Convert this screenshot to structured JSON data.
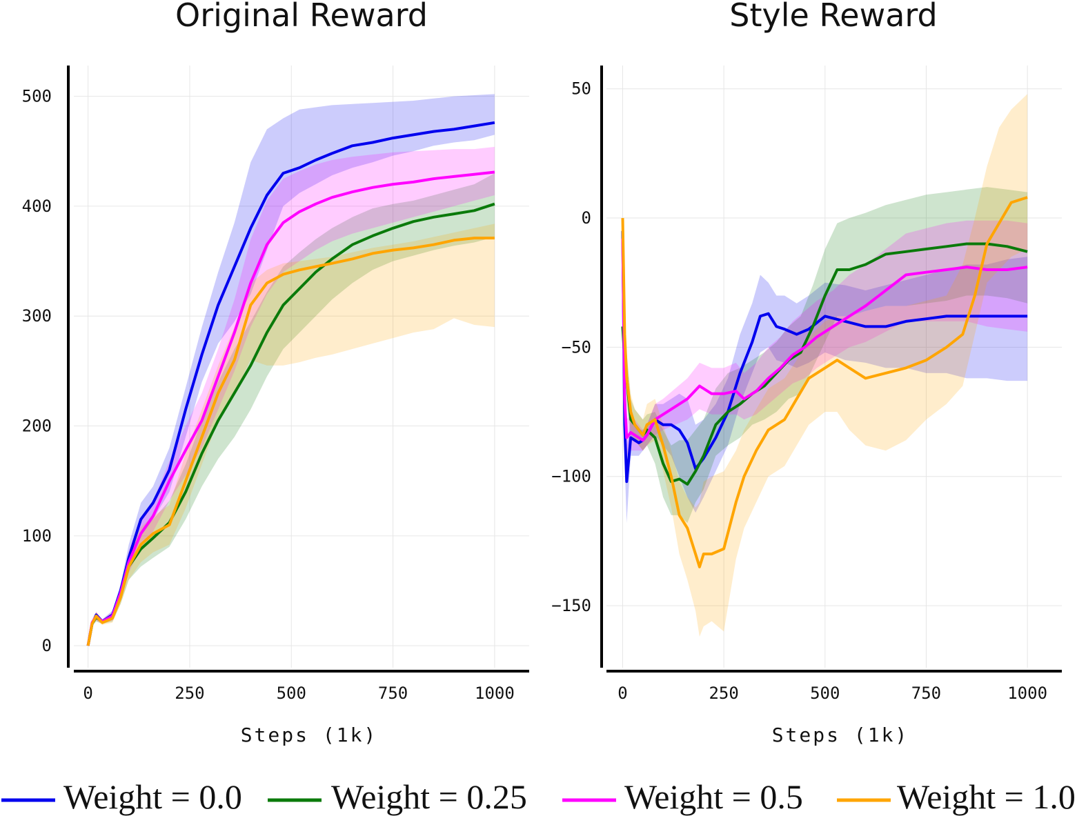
{
  "legend": [
    {
      "label": "Weight = 0.0",
      "color": "#0000ee"
    },
    {
      "label": "Weight = 0.25",
      "color": "#0a7a0a"
    },
    {
      "label": "Weight = 0.5",
      "color": "#ff00ff"
    },
    {
      "label": "Weight = 1.0",
      "color": "#ffa500"
    }
  ],
  "chart_data": [
    {
      "type": "line",
      "title": "Original Reward",
      "xlabel": "Steps (1k)",
      "ylabel": "",
      "xlim": [
        -35,
        1085
      ],
      "ylim": [
        -20,
        528
      ],
      "xticks": [
        0,
        250,
        500,
        750,
        1000
      ],
      "yticks": [
        0,
        100,
        200,
        300,
        400,
        500
      ],
      "grid": true,
      "series": [
        {
          "color": "#0000ee",
          "x": [
            0,
            10,
            20,
            35,
            60,
            80,
            100,
            130,
            160,
            200,
            240,
            280,
            320,
            360,
            400,
            440,
            480,
            520,
            560,
            600,
            650,
            700,
            750,
            800,
            850,
            900,
            950,
            1000
          ],
          "y": [
            0,
            20,
            28,
            22,
            28,
            50,
            80,
            115,
            130,
            160,
            215,
            265,
            310,
            345,
            380,
            410,
            430,
            435,
            442,
            448,
            455,
            458,
            462,
            465,
            468,
            470,
            473,
            476
          ],
          "lower": [
            0,
            18,
            24,
            20,
            24,
            44,
            70,
            100,
            115,
            140,
            190,
            240,
            275,
            295,
            320,
            360,
            400,
            412,
            420,
            428,
            435,
            440,
            446,
            450,
            455,
            458,
            460,
            465
          ],
          "upper": [
            0,
            22,
            30,
            24,
            32,
            56,
            92,
            130,
            145,
            180,
            235,
            290,
            340,
            385,
            440,
            470,
            480,
            488,
            490,
            492,
            493,
            494,
            495,
            496,
            498,
            500,
            501,
            502
          ]
        },
        {
          "color": "#0a7a0a",
          "x": [
            0,
            10,
            20,
            35,
            60,
            80,
            100,
            130,
            160,
            200,
            240,
            280,
            320,
            360,
            400,
            440,
            480,
            520,
            560,
            600,
            650,
            700,
            750,
            800,
            850,
            900,
            950,
            1000
          ],
          "y": [
            0,
            20,
            26,
            22,
            26,
            45,
            72,
            88,
            98,
            112,
            140,
            175,
            205,
            230,
            255,
            285,
            310,
            325,
            340,
            352,
            365,
            373,
            380,
            386,
            390,
            393,
            396,
            402
          ],
          "lower": [
            0,
            18,
            22,
            20,
            22,
            38,
            60,
            72,
            80,
            90,
            115,
            145,
            170,
            190,
            215,
            245,
            270,
            285,
            300,
            315,
            330,
            342,
            350,
            355,
            360,
            364,
            367,
            372
          ],
          "upper": [
            0,
            22,
            30,
            24,
            30,
            52,
            85,
            102,
            115,
            132,
            165,
            205,
            240,
            270,
            295,
            322,
            345,
            358,
            370,
            380,
            390,
            398,
            402,
            405,
            410,
            415,
            420,
            430
          ]
        },
        {
          "color": "#ff00ff",
          "x": [
            0,
            10,
            20,
            35,
            60,
            80,
            100,
            130,
            160,
            200,
            240,
            280,
            320,
            360,
            400,
            440,
            480,
            520,
            560,
            600,
            650,
            700,
            750,
            800,
            850,
            900,
            950,
            1000
          ],
          "y": [
            0,
            21,
            27,
            22,
            27,
            48,
            76,
            102,
            118,
            150,
            178,
            205,
            245,
            285,
            330,
            365,
            385,
            395,
            402,
            408,
            413,
            417,
            420,
            422,
            425,
            427,
            429,
            431
          ],
          "lower": [
            0,
            19,
            23,
            20,
            23,
            42,
            66,
            90,
            104,
            132,
            155,
            180,
            215,
            250,
            290,
            320,
            340,
            350,
            360,
            368,
            375,
            380,
            385,
            390,
            395,
            400,
            405,
            410
          ],
          "upper": [
            0,
            23,
            31,
            24,
            31,
            54,
            86,
            115,
            132,
            168,
            200,
            230,
            270,
            315,
            370,
            405,
            425,
            432,
            438,
            442,
            445,
            447,
            449,
            450,
            451,
            452,
            452,
            454
          ]
        },
        {
          "color": "#ffa500",
          "x": [
            0,
            10,
            20,
            35,
            60,
            80,
            100,
            130,
            160,
            200,
            240,
            280,
            320,
            360,
            400,
            440,
            480,
            520,
            560,
            600,
            650,
            700,
            750,
            800,
            850,
            900,
            950,
            1000
          ],
          "y": [
            0,
            20,
            27,
            21,
            25,
            44,
            72,
            92,
            102,
            110,
            150,
            190,
            230,
            260,
            310,
            330,
            338,
            342,
            345,
            348,
            352,
            357,
            360,
            362,
            365,
            369,
            371,
            371
          ],
          "lower": [
            0,
            18,
            23,
            19,
            21,
            38,
            60,
            76,
            85,
            92,
            125,
            165,
            205,
            230,
            260,
            255,
            255,
            258,
            262,
            265,
            270,
            275,
            280,
            285,
            288,
            298,
            292,
            290
          ],
          "upper": [
            0,
            22,
            31,
            23,
            29,
            50,
            84,
            108,
            118,
            128,
            175,
            215,
            255,
            290,
            330,
            342,
            348,
            350,
            352,
            354,
            358,
            362,
            365,
            368,
            372,
            376,
            380,
            384
          ]
        }
      ]
    },
    {
      "type": "line",
      "title": "Style Reward",
      "xlabel": "Steps (1k)",
      "ylabel": "",
      "xlim": [
        -40,
        1085
      ],
      "ylim": [
        -174,
        59
      ],
      "xticks": [
        0,
        250,
        500,
        750,
        1000
      ],
      "yticks": [
        50,
        0,
        -50,
        -100,
        -150
      ],
      "grid": true,
      "series": [
        {
          "color": "#0000ee",
          "x": [
            0,
            5,
            10,
            20,
            30,
            40,
            50,
            60,
            80,
            100,
            120,
            140,
            160,
            180,
            200,
            230,
            260,
            290,
            320,
            340,
            360,
            380,
            400,
            430,
            460,
            500,
            550,
            600,
            650,
            700,
            750,
            800,
            850,
            900,
            950,
            1000
          ],
          "y": [
            -5,
            -80,
            -102,
            -85,
            -86,
            -87,
            -86,
            -84,
            -78,
            -80,
            -80,
            -82,
            -87,
            -97,
            -93,
            -85,
            -75,
            -60,
            -48,
            -38,
            -37,
            -42,
            -43,
            -45,
            -43,
            -38,
            -40,
            -42,
            -42,
            -40,
            -39,
            -38,
            -38,
            -38,
            -38,
            -38
          ],
          "lower": [
            -10,
            -95,
            -118,
            -92,
            -92,
            -92,
            -90,
            -88,
            -84,
            -88,
            -92,
            -100,
            -108,
            -114,
            -108,
            -98,
            -88,
            -72,
            -60,
            -52,
            -50,
            -55,
            -56,
            -58,
            -56,
            -52,
            -55,
            -56,
            -58,
            -58,
            -60,
            -60,
            -62,
            -62,
            -63,
            -63
          ],
          "upper": [
            0,
            -65,
            -88,
            -78,
            -80,
            -82,
            -82,
            -80,
            -72,
            -72,
            -70,
            -68,
            -70,
            -80,
            -78,
            -72,
            -62,
            -45,
            -33,
            -22,
            -25,
            -30,
            -30,
            -33,
            -30,
            -25,
            -26,
            -28,
            -26,
            -24,
            -22,
            -20,
            -18,
            -18,
            -16,
            -15
          ]
        },
        {
          "color": "#0a7a0a",
          "x": [
            0,
            5,
            10,
            20,
            30,
            40,
            50,
            60,
            80,
            100,
            120,
            140,
            160,
            180,
            200,
            230,
            260,
            290,
            320,
            350,
            380,
            410,
            440,
            470,
            500,
            530,
            560,
            600,
            650,
            700,
            750,
            800,
            850,
            900,
            950,
            1000
          ],
          "y": [
            -42,
            -55,
            -62,
            -78,
            -80,
            -82,
            -84,
            -82,
            -85,
            -95,
            -102,
            -101,
            -103,
            -98,
            -92,
            -80,
            -75,
            -72,
            -68,
            -65,
            -60,
            -55,
            -52,
            -42,
            -30,
            -20,
            -20,
            -18,
            -14,
            -13,
            -12,
            -11,
            -10,
            -10,
            -11,
            -13
          ],
          "lower": [
            -50,
            -65,
            -72,
            -85,
            -86,
            -88,
            -90,
            -88,
            -95,
            -108,
            -115,
            -115,
            -118,
            -110,
            -105,
            -92,
            -88,
            -85,
            -80,
            -78,
            -75,
            -70,
            -68,
            -58,
            -48,
            -38,
            -38,
            -36,
            -34,
            -34,
            -33,
            -32,
            -30,
            -30,
            -31,
            -33
          ],
          "upper": [
            -35,
            -45,
            -52,
            -70,
            -74,
            -76,
            -78,
            -76,
            -75,
            -82,
            -88,
            -86,
            -86,
            -82,
            -78,
            -66,
            -60,
            -58,
            -55,
            -52,
            -48,
            -42,
            -38,
            -26,
            -12,
            -2,
            0,
            2,
            5,
            7,
            9,
            10,
            11,
            12,
            11,
            10
          ]
        },
        {
          "color": "#ff00ff",
          "x": [
            0,
            5,
            10,
            20,
            30,
            40,
            50,
            60,
            80,
            100,
            130,
            160,
            190,
            220,
            250,
            280,
            300,
            330,
            360,
            390,
            420,
            450,
            480,
            520,
            560,
            600,
            650,
            700,
            750,
            800,
            850,
            900,
            950,
            1000
          ],
          "y": [
            -8,
            -70,
            -85,
            -83,
            -84,
            -85,
            -86,
            -84,
            -78,
            -76,
            -73,
            -70,
            -65,
            -68,
            -68,
            -67,
            -70,
            -67,
            -62,
            -58,
            -53,
            -50,
            -46,
            -42,
            -38,
            -34,
            -28,
            -22,
            -21,
            -20,
            -19,
            -20,
            -20,
            -19
          ],
          "lower": [
            -12,
            -80,
            -92,
            -90,
            -90,
            -90,
            -90,
            -88,
            -84,
            -82,
            -80,
            -78,
            -74,
            -76,
            -76,
            -76,
            -78,
            -76,
            -72,
            -68,
            -64,
            -62,
            -58,
            -54,
            -50,
            -48,
            -44,
            -40,
            -40,
            -40,
            -40,
            -42,
            -43,
            -44
          ],
          "upper": [
            -4,
            -60,
            -78,
            -76,
            -78,
            -80,
            -82,
            -80,
            -72,
            -70,
            -66,
            -62,
            -56,
            -58,
            -58,
            -56,
            -60,
            -56,
            -50,
            -46,
            -40,
            -36,
            -32,
            -28,
            -22,
            -18,
            -12,
            -6,
            -4,
            -2,
            -1,
            -1,
            -1,
            -2
          ]
        },
        {
          "color": "#ffa500",
          "x": [
            0,
            5,
            10,
            20,
            30,
            40,
            50,
            60,
            80,
            100,
            120,
            140,
            160,
            180,
            190,
            200,
            220,
            250,
            280,
            300,
            330,
            360,
            400,
            430,
            460,
            500,
            530,
            560,
            600,
            650,
            700,
            750,
            800,
            840,
            870,
            900,
            930,
            960,
            1000
          ],
          "y": [
            0,
            -45,
            -62,
            -75,
            -80,
            -82,
            -84,
            -80,
            -78,
            -88,
            -100,
            -115,
            -120,
            -130,
            -135,
            -130,
            -130,
            -128,
            -110,
            -100,
            -90,
            -82,
            -78,
            -70,
            -62,
            -58,
            -55,
            -58,
            -62,
            -60,
            -58,
            -55,
            -50,
            -45,
            -30,
            -10,
            -2,
            6,
            8
          ],
          "lower": [
            0,
            -55,
            -70,
            -82,
            -86,
            -88,
            -90,
            -88,
            -86,
            -98,
            -112,
            -130,
            -140,
            -152,
            -162,
            -158,
            -156,
            -160,
            -132,
            -120,
            -110,
            -100,
            -96,
            -88,
            -80,
            -75,
            -75,
            -82,
            -88,
            -90,
            -86,
            -78,
            -72,
            -65,
            -45,
            -25,
            -20,
            -15,
            -12
          ],
          "upper": [
            0,
            -35,
            -52,
            -68,
            -74,
            -76,
            -78,
            -72,
            -70,
            -80,
            -90,
            -102,
            -108,
            -112,
            -110,
            -102,
            -100,
            -98,
            -90,
            -82,
            -74,
            -66,
            -62,
            -55,
            -46,
            -40,
            -38,
            -38,
            -36,
            -34,
            -34,
            -32,
            -30,
            -18,
            0,
            20,
            35,
            42,
            48
          ]
        }
      ]
    }
  ]
}
